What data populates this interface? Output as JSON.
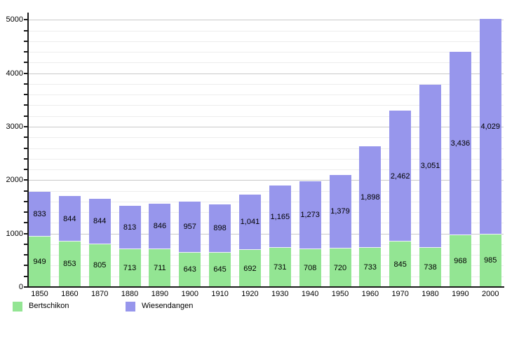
{
  "chart_data": {
    "type": "bar",
    "stacked": true,
    "title": "",
    "xlabel": "",
    "ylabel": "",
    "categories": [
      "1850",
      "1860",
      "1870",
      "1880",
      "1890",
      "1900",
      "1910",
      "1920",
      "1930",
      "1940",
      "1950",
      "1960",
      "1970",
      "1980",
      "1990",
      "2000"
    ],
    "series": [
      {
        "name": "Bertschikon",
        "color": "#93E593",
        "values": [
          949,
          853,
          805,
          713,
          711,
          643,
          645,
          692,
          731,
          708,
          720,
          733,
          845,
          738,
          968,
          985
        ],
        "labels": [
          "949",
          "853",
          "805",
          "713",
          "711",
          "643",
          "645",
          "692",
          "731",
          "708",
          "720",
          "733",
          "845",
          "738",
          "968",
          "985"
        ]
      },
      {
        "name": "Wiesendangen",
        "color": "#9796EC",
        "values": [
          833,
          844,
          844,
          813,
          846,
          957,
          898,
          1041,
          1165,
          1273,
          1379,
          1898,
          2462,
          3051,
          3436,
          4029
        ],
        "labels": [
          "833",
          "844",
          "844",
          "813",
          "846",
          "957",
          "898",
          "1,041",
          "1,165",
          "1,273",
          "1,379",
          "1,898",
          "2,462",
          "3,051",
          "3,436",
          "4,029"
        ]
      }
    ],
    "ylim": [
      0,
      5000
    ],
    "y_major_step": 1000,
    "y_minor_step": 200,
    "y_tick_labels": [
      "0",
      "1000",
      "2000",
      "3000",
      "4000",
      "5000"
    ],
    "grid": true,
    "legend_position": "bottom"
  },
  "legend": {
    "items": [
      {
        "label": "Bertschikon",
        "color": "#93E593"
      },
      {
        "label": "Wiesendangen",
        "color": "#9796EC"
      }
    ]
  }
}
